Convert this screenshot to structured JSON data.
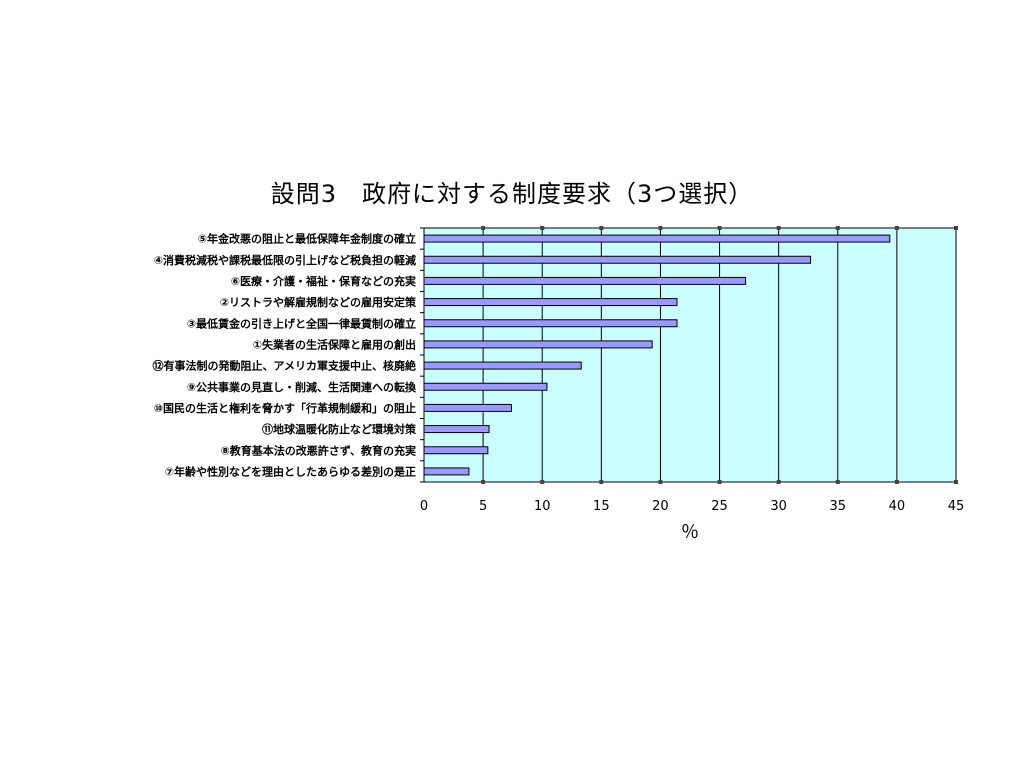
{
  "chart_data": {
    "type": "bar",
    "orientation": "horizontal",
    "title": "設問3　政府に対する制度要求（3つ選択）",
    "xlabel": "％",
    "ylabel": "",
    "xlim": [
      0,
      45
    ],
    "ticks": [
      "0",
      "5",
      "10",
      "15",
      "20",
      "25",
      "30",
      "35",
      "40",
      "45"
    ],
    "grid": true,
    "legend": "none",
    "plot_background": "#ccffff",
    "bar_color": "#9999ff",
    "categories": [
      "⑤年金改悪の阻止と最低保障年金制度の確立",
      "④消費税減税や課税最低限の引上げなど税負担の軽減",
      "⑥医療・介護・福祉・保育などの充実",
      "②リストラや解雇規制などの雇用安定策",
      "③最低賃金の引き上げと全国一律最賃制の確立",
      "①失業者の生活保障と雇用の創出",
      "⑫有事法制の発動阻止、アメリカ軍支援中止、核廃絶",
      "⑨公共事業の見直し・削減、生活関連への転換",
      "⑩国民の生活と権利を脅かす「行革規制緩和」の阻止",
      "⑪地球温暖化防止など環境対策",
      "⑧教育基本法の改悪許さず、教育の充実",
      "⑦年齢や性別などを理由としたあらゆる差別の是正"
    ],
    "values": [
      39.4,
      32.7,
      27.2,
      21.4,
      21.4,
      19.3,
      13.3,
      10.4,
      7.4,
      5.5,
      5.4,
      3.8
    ]
  }
}
